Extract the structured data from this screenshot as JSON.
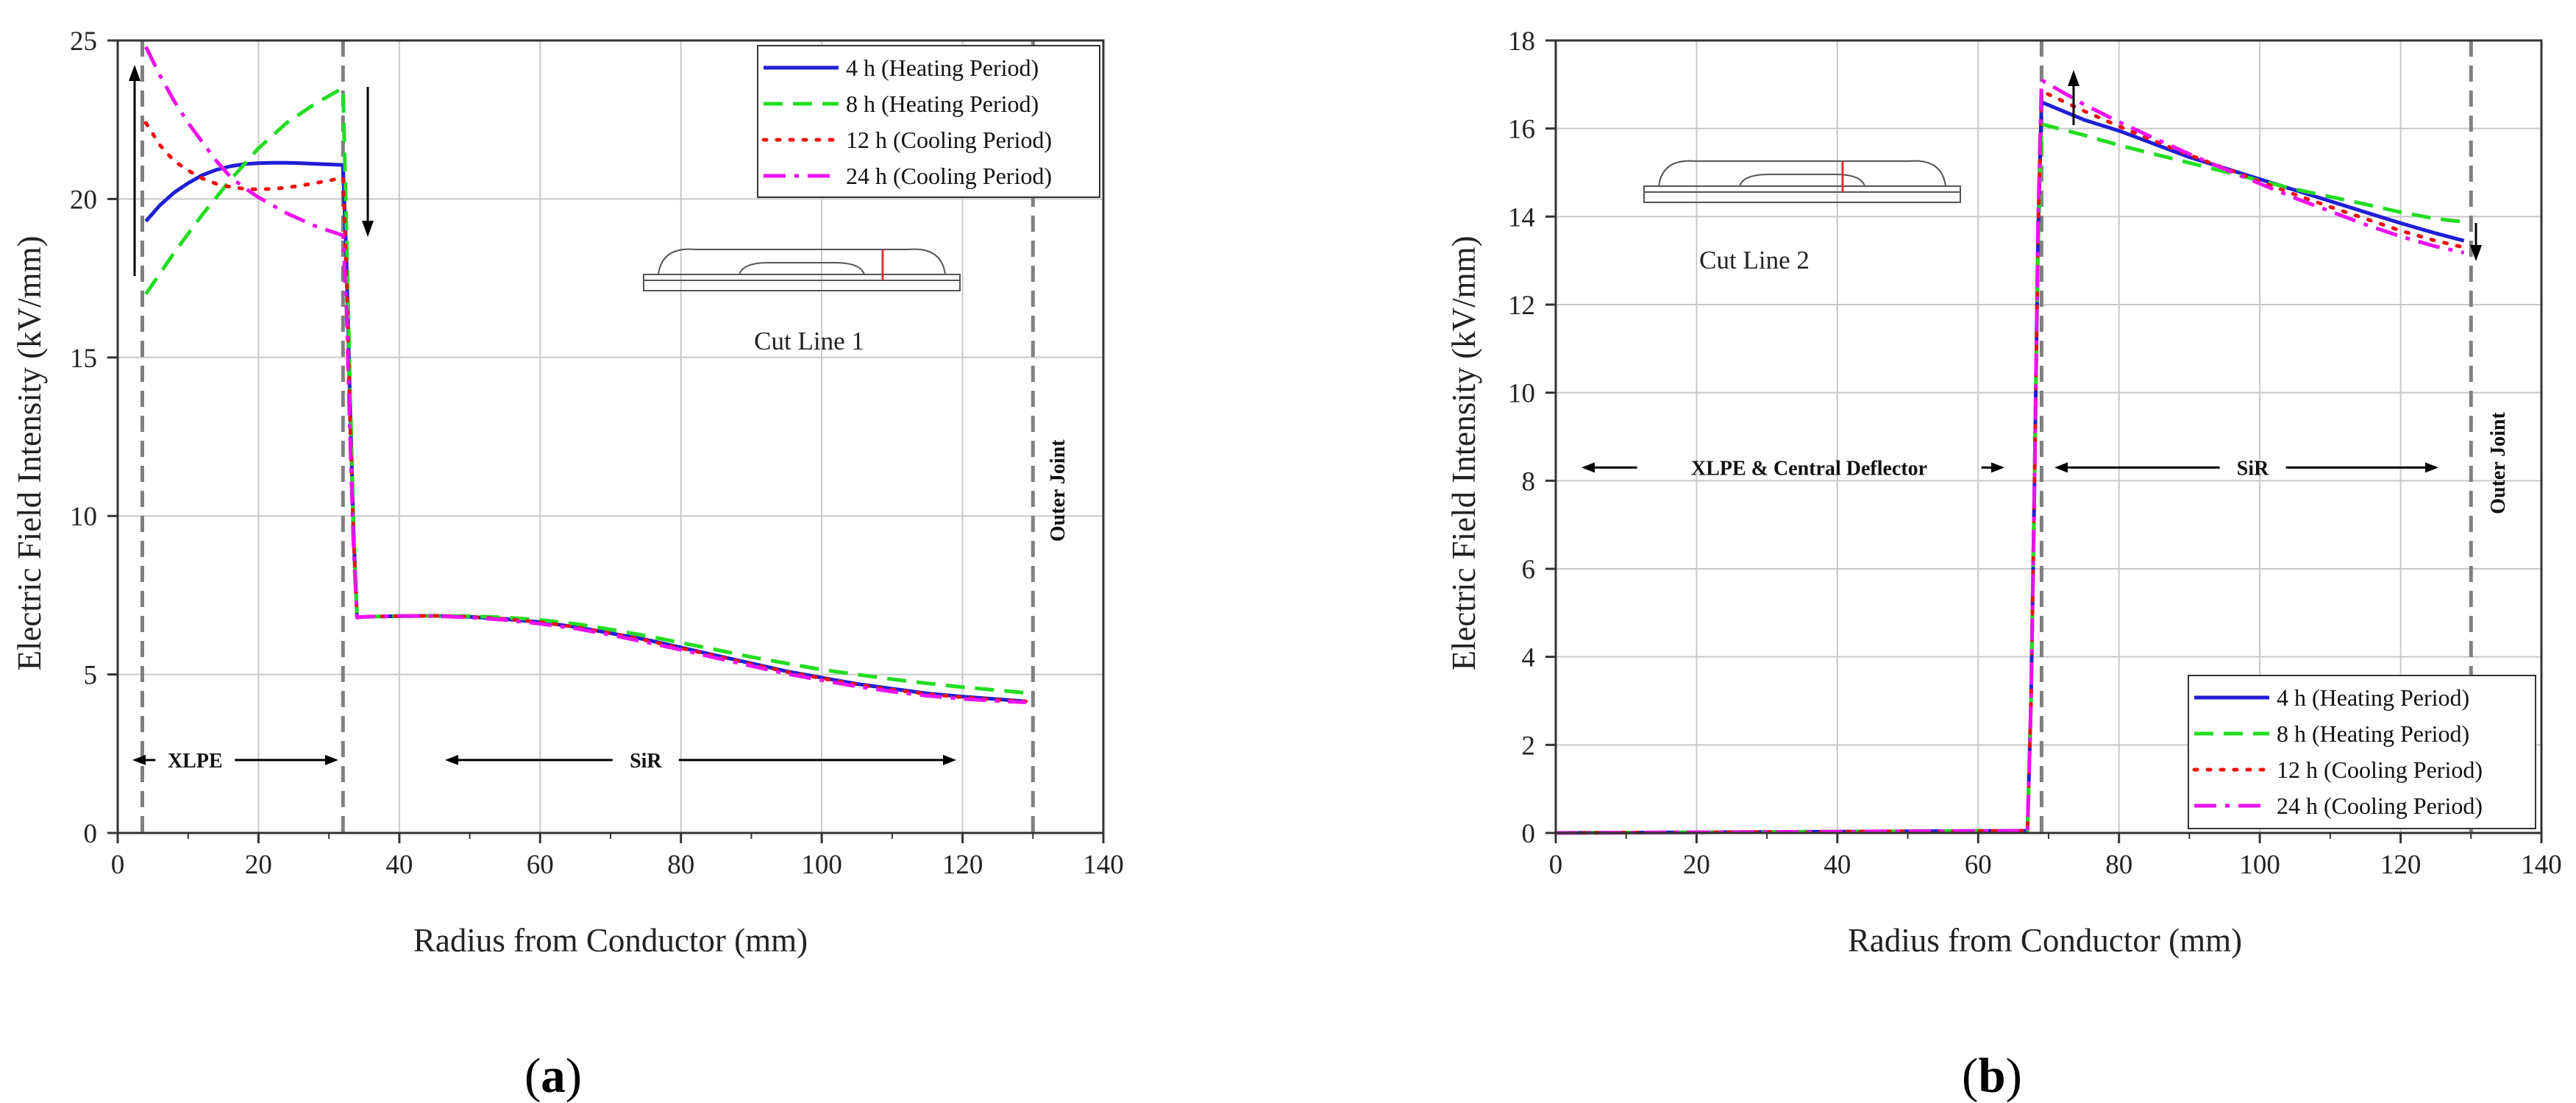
{
  "chart_data": [
    {
      "type": "line",
      "panel_label": "(a)",
      "panel_label_parts": [
        "(",
        "a",
        ")"
      ],
      "xlabel": "Radius from Conductor (mm)",
      "ylabel": "Electric Field Intensity (kV/mm)",
      "xlim": [
        0,
        140
      ],
      "ylim": [
        0,
        25
      ],
      "x_ticks": [
        "0",
        "20",
        "40",
        "60",
        "80",
        "100",
        "120",
        "140"
      ],
      "y_ticks": [
        "0",
        "5",
        "10",
        "15",
        "20",
        "25"
      ],
      "grid": true,
      "legend_position": "top-right",
      "boundaries": [
        3.5,
        32,
        130
      ],
      "region_labels": [
        {
          "text": "XLPE",
          "x": 11,
          "y": 2.3
        },
        {
          "text": "SiR",
          "x": 75,
          "y": 2.3
        }
      ],
      "vertical_label": {
        "text": "Outer Joint",
        "x": 133,
        "y": 10.8
      },
      "inset_label": "Cut Line 1",
      "series": [
        {
          "name": "4 h (Heating Period)",
          "color": "#1f1fd6",
          "dash": "solid",
          "x": [
            4,
            6,
            8,
            10,
            12,
            14,
            16,
            18,
            20,
            22,
            24,
            26,
            28,
            30,
            32,
            32.5,
            33,
            33.5,
            34,
            35,
            40,
            45,
            50,
            55,
            60,
            65,
            70,
            75,
            80,
            85,
            90,
            95,
            100,
            105,
            110,
            115,
            120,
            125,
            129
          ],
          "y": [
            19.3,
            19.8,
            20.2,
            20.5,
            20.75,
            20.92,
            21.03,
            21.1,
            21.13,
            21.14,
            21.14,
            21.13,
            21.11,
            21.09,
            21.07,
            18.0,
            13.5,
            9.5,
            6.8,
            6.82,
            6.84,
            6.85,
            6.82,
            6.75,
            6.65,
            6.5,
            6.3,
            6.1,
            5.85,
            5.6,
            5.35,
            5.1,
            4.9,
            4.7,
            4.55,
            4.4,
            4.3,
            4.22,
            4.15
          ]
        },
        {
          "name": "8 h (Heating Period)",
          "color": "#22dd22",
          "dash": "long",
          "x": [
            4,
            8,
            12,
            16,
            20,
            24,
            28,
            32,
            32.5,
            33,
            33.5,
            34,
            35,
            40,
            45,
            50,
            55,
            60,
            65,
            70,
            75,
            80,
            85,
            90,
            95,
            100,
            105,
            110,
            115,
            120,
            125,
            129
          ],
          "y": [
            17.0,
            18.3,
            19.5,
            20.6,
            21.6,
            22.4,
            23.0,
            23.5,
            19.0,
            14.0,
            9.8,
            6.8,
            6.82,
            6.84,
            6.85,
            6.84,
            6.8,
            6.72,
            6.6,
            6.42,
            6.22,
            6.0,
            5.78,
            5.55,
            5.35,
            5.15,
            5.0,
            4.85,
            4.72,
            4.6,
            4.5,
            4.42
          ]
        },
        {
          "name": "12 h (Cooling Period)",
          "color": "#ee1111",
          "dash": "dot",
          "x": [
            4,
            6,
            8,
            10,
            12,
            14,
            16,
            18,
            20,
            22,
            24,
            26,
            28,
            30,
            32,
            32.5,
            33,
            33.5,
            34,
            35,
            40,
            45,
            50,
            55,
            60,
            65,
            70,
            75,
            80,
            85,
            90,
            95,
            100,
            105,
            110,
            115,
            120,
            125,
            129
          ],
          "y": [
            22.4,
            21.7,
            21.2,
            20.9,
            20.65,
            20.48,
            20.38,
            20.32,
            20.3,
            20.32,
            20.36,
            20.42,
            20.5,
            20.58,
            20.67,
            17.5,
            13.0,
            9.3,
            6.8,
            6.82,
            6.84,
            6.85,
            6.82,
            6.75,
            6.65,
            6.5,
            6.3,
            6.08,
            5.83,
            5.58,
            5.33,
            5.08,
            4.88,
            4.68,
            4.52,
            4.38,
            4.28,
            4.2,
            4.15
          ]
        },
        {
          "name": "24 h (Cooling Period)",
          "color": "#ee11ee",
          "dash": "dashdot",
          "x": [
            4,
            6,
            8,
            10,
            12,
            14,
            16,
            18,
            20,
            22,
            24,
            26,
            28,
            30,
            32,
            32.5,
            33,
            33.5,
            34,
            35,
            40,
            45,
            50,
            55,
            60,
            65,
            70,
            75,
            80,
            85,
            90,
            95,
            100,
            105,
            110,
            115,
            120,
            125,
            129
          ],
          "y": [
            24.8,
            23.9,
            23.1,
            22.4,
            21.8,
            21.2,
            20.7,
            20.35,
            20.05,
            19.8,
            19.55,
            19.35,
            19.15,
            19.0,
            18.85,
            16.5,
            12.5,
            9.0,
            6.8,
            6.82,
            6.84,
            6.84,
            6.8,
            6.72,
            6.6,
            6.45,
            6.25,
            6.02,
            5.78,
            5.52,
            5.27,
            5.02,
            4.82,
            4.62,
            4.46,
            4.33,
            4.23,
            4.16,
            4.12
          ]
        }
      ]
    },
    {
      "type": "line",
      "panel_label": "(b)",
      "panel_label_parts": [
        "(",
        "b",
        ")"
      ],
      "xlabel": "Radius from Conductor (mm)",
      "ylabel": "Electric Field Intensity (kV/mm)",
      "xlim": [
        0,
        140
      ],
      "ylim": [
        0,
        18
      ],
      "x_ticks": [
        "0",
        "20",
        "40",
        "60",
        "80",
        "100",
        "120",
        "140"
      ],
      "y_ticks": [
        "0",
        "2",
        "4",
        "6",
        "8",
        "10",
        "12",
        "14",
        "16",
        "18"
      ],
      "grid": true,
      "legend_position": "bottom-right",
      "boundaries": [
        69,
        130
      ],
      "region_labels": [
        {
          "text": "XLPE & Central Deflector",
          "x": 36,
          "y": 8.3
        },
        {
          "text": "SiR",
          "x": 99,
          "y": 8.3
        }
      ],
      "vertical_label": {
        "text": "Outer Joint",
        "x": 134,
        "y": 8.4
      },
      "inset_label": "Cut Line 2",
      "series": [
        {
          "name": "4 h (Heating Period)",
          "color": "#1f1fd6",
          "dash": "solid",
          "x": [
            0,
            67,
            67.5,
            68,
            68.5,
            69,
            75,
            80,
            85,
            90,
            95,
            100,
            105,
            110,
            115,
            120,
            125,
            129
          ],
          "y": [
            0,
            0.05,
            3.0,
            8.0,
            13.5,
            16.6,
            16.2,
            15.95,
            15.65,
            15.35,
            15.1,
            14.85,
            14.6,
            14.35,
            14.1,
            13.85,
            13.62,
            13.45
          ]
        },
        {
          "name": "8 h (Heating Period)",
          "color": "#22dd22",
          "dash": "long",
          "x": [
            0,
            67,
            67.5,
            68,
            68.5,
            69,
            75,
            80,
            85,
            90,
            95,
            100,
            105,
            110,
            115,
            120,
            125,
            129
          ],
          "y": [
            0,
            0.05,
            3.0,
            8.0,
            13.2,
            16.1,
            15.85,
            15.62,
            15.42,
            15.22,
            15.02,
            14.82,
            14.62,
            14.45,
            14.28,
            14.1,
            13.95,
            13.88
          ]
        },
        {
          "name": "12 h (Cooling Period)",
          "color": "#ee1111",
          "dash": "dot",
          "x": [
            0,
            67,
            67.5,
            68,
            68.5,
            69,
            75,
            80,
            85,
            90,
            95,
            100,
            105,
            110,
            115,
            120,
            125,
            129
          ],
          "y": [
            0,
            0.05,
            3.0,
            8.0,
            13.6,
            16.85,
            16.4,
            16.05,
            15.72,
            15.4,
            15.1,
            14.8,
            14.5,
            14.22,
            13.95,
            13.68,
            13.45,
            13.3
          ]
        },
        {
          "name": "24 h (Cooling Period)",
          "color": "#ee11ee",
          "dash": "dashdot",
          "x": [
            0,
            67,
            67.5,
            68,
            68.5,
            69,
            75,
            80,
            85,
            90,
            95,
            100,
            105,
            110,
            115,
            120,
            125,
            129
          ],
          "y": [
            0,
            0.05,
            3.0,
            8.0,
            13.8,
            17.1,
            16.55,
            16.15,
            15.78,
            15.42,
            15.08,
            14.75,
            14.42,
            14.12,
            13.82,
            13.55,
            13.32,
            13.18
          ]
        }
      ]
    }
  ]
}
